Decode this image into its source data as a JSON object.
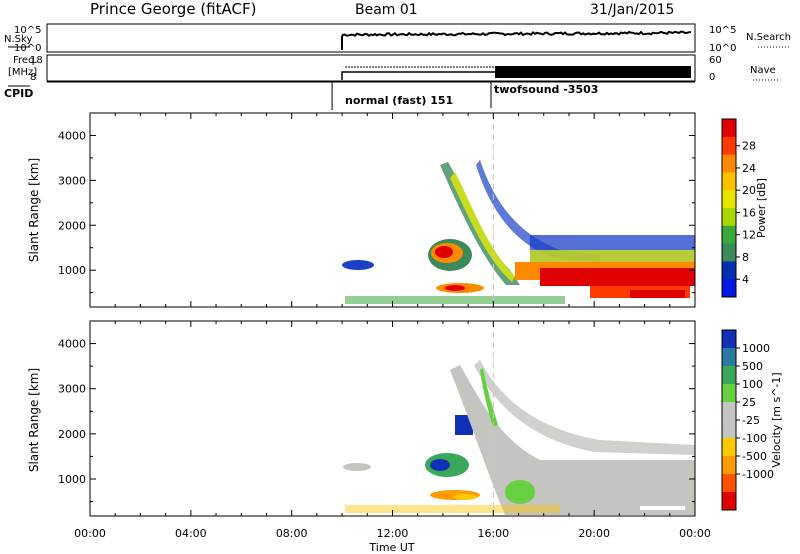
{
  "header": {
    "station": "Prince George (fitACF)",
    "beam": "Beam 01",
    "date": "31/Jan/2015"
  },
  "strip1": {
    "left_label": "N.Sky",
    "left_ticks": [
      "10^5",
      "10^0"
    ],
    "right_ticks": [
      "10^5",
      "10^0"
    ],
    "right_label": "N.Search"
  },
  "strip2": {
    "left_label_1": "Freq.",
    "left_label_2": "[MHz]",
    "left_ticks": [
      "18",
      "8"
    ],
    "right_ticks": [
      "60",
      "0"
    ],
    "right_label": "Nave"
  },
  "cpid": {
    "label": "CPID",
    "segments": [
      {
        "label": "normal (fast) 151",
        "start_hour": 10.0
      },
      {
        "label": "twofsound -3503",
        "start_hour": 16.0
      }
    ]
  },
  "x_axis": {
    "label": "Time UT",
    "ticks": [
      "00:00",
      "04:00",
      "08:00",
      "12:00",
      "16:00",
      "20:00",
      "00:00"
    ],
    "range_hours": [
      0,
      24
    ]
  },
  "power_colorbar": {
    "label": "Power [dB]",
    "ticks": [
      "28",
      "24",
      "20",
      "16",
      "12",
      "8",
      "4"
    ],
    "colors": [
      "#e00000",
      "#ff3a00",
      "#ff8a00",
      "#ffc000",
      "#e8e400",
      "#a8d800",
      "#3aa83a",
      "#3a8a5a",
      "#0030b0",
      "#0018e0"
    ]
  },
  "velocity_colorbar": {
    "label": "Velocity [m s^-1]",
    "ticks": [
      "1000",
      "500",
      "100",
      "25",
      "-25",
      "-100",
      "-500",
      "-1000"
    ],
    "colors": [
      "#1030b8",
      "#2a7aa0",
      "#3aa85a",
      "#66d040",
      "#c4c4c0",
      "#c4c4c0",
      "#ffc800",
      "#ff9a00",
      "#ff5000",
      "#e00000"
    ]
  },
  "chart_data": [
    {
      "type": "heatmap",
      "title": "",
      "xlabel": "Time UT",
      "ylabel": "Slant Range [km]",
      "xlim_hours": [
        0,
        24
      ],
      "ylim_km": [
        180,
        4500
      ],
      "y_ticks": [
        1000,
        2000,
        3000,
        4000
      ],
      "colorbar": "Power [dB]",
      "marker_hour": 16.0
    },
    {
      "type": "heatmap",
      "title": "",
      "xlabel": "Time UT",
      "ylabel": "Slant Range [km]",
      "xlim_hours": [
        0,
        24
      ],
      "ylim_km": [
        180,
        4500
      ],
      "y_ticks": [
        1000,
        2000,
        3000,
        4000
      ],
      "colorbar": "Velocity [m s^-1]",
      "marker_hour": 16.0
    }
  ]
}
